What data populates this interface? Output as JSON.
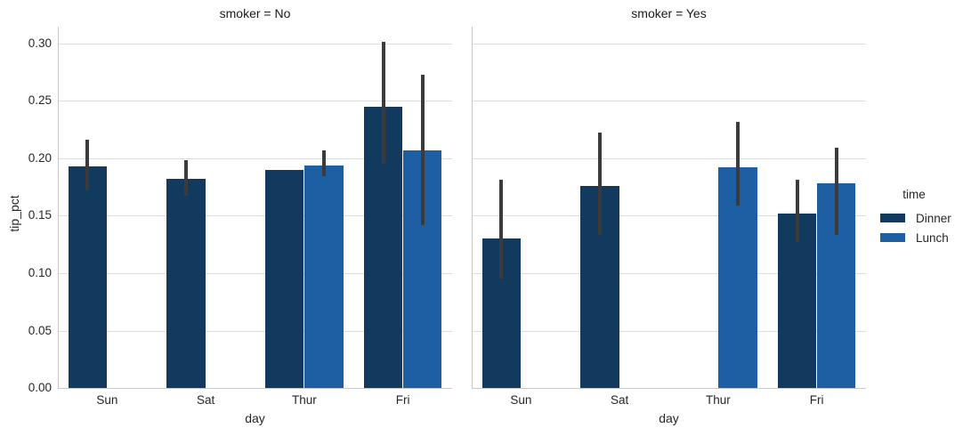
{
  "chart_data": {
    "type": "bar",
    "categories": [
      "Sun",
      "Sat",
      "Thur",
      "Fri"
    ],
    "xlabel": "day",
    "ylabel": "tip_pct",
    "ylim": [
      0,
      0.3
    ],
    "ytick_labels": [
      "0.00",
      "0.05",
      "0.10",
      "0.15",
      "0.20",
      "0.25",
      "0.30"
    ],
    "grid": true,
    "legend_position": "right",
    "legend": {
      "title": "time",
      "entries": [
        {
          "label": "Dinner",
          "color": "#123a5f"
        },
        {
          "label": "Lunch",
          "color": "#1e5fa4"
        }
      ]
    },
    "facets": [
      {
        "id": "smoker-no",
        "title": "smoker = No",
        "series": [
          {
            "name": "Dinner",
            "values": [
              0.193,
              0.182,
              0.19,
              0.245
            ],
            "ci_low": [
              0.172,
              0.167,
              null,
              0.195
            ],
            "ci_high": [
              0.216,
              0.198,
              null,
              0.301
            ]
          },
          {
            "name": "Lunch",
            "values": [
              null,
              null,
              0.194,
              0.207
            ],
            "ci_low": [
              null,
              null,
              0.184,
              0.142
            ],
            "ci_high": [
              null,
              null,
              0.207,
              0.273
            ]
          }
        ]
      },
      {
        "id": "smoker-yes",
        "title": "smoker = Yes",
        "series": [
          {
            "name": "Dinner",
            "values": [
              0.13,
              0.176,
              null,
              0.152
            ],
            "ci_low": [
              0.095,
              0.133,
              null,
              0.127
            ],
            "ci_high": [
              0.181,
              0.222,
              null,
              0.181
            ]
          },
          {
            "name": "Lunch",
            "values": [
              null,
              null,
              0.192,
              0.178
            ],
            "ci_low": [
              null,
              null,
              0.159,
              0.133
            ],
            "ci_high": [
              null,
              null,
              0.232,
              0.209
            ]
          }
        ]
      }
    ],
    "colors": {
      "errorbar": "#3b3b3b",
      "grid": "#dcdcdc",
      "spine": "#c8c8c8",
      "text": "#262626"
    }
  }
}
